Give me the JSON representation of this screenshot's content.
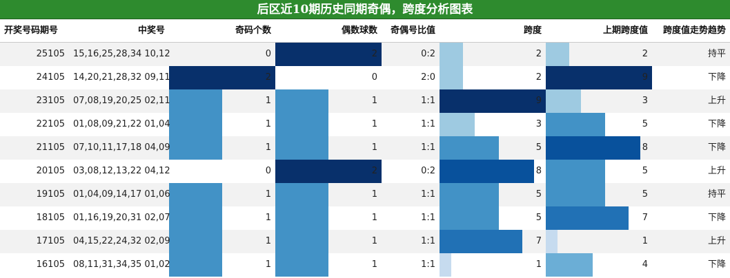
{
  "title": "后区近10期历史同期奇偶，跨度分析图表",
  "headers": {
    "period": "开奖号码期号",
    "numbers": "中奖号",
    "odd_count": "奇码个数",
    "even_count": "偶数球数",
    "ratio": "奇偶号比值",
    "span": "跨度",
    "prev_span": "上期跨度值",
    "trend": "跨度值走势趋势"
  },
  "chart_data": {
    "type": "table",
    "title": "后区近10期历史同期奇偶，跨度分析图表",
    "columns": [
      "开奖号码期号",
      "中奖号",
      "奇码个数",
      "偶数球数",
      "奇偶号比值",
      "跨度",
      "上期跨度值",
      "跨度值走势趋势"
    ],
    "rows": [
      {
        "period": "25105",
        "numbers": "15,16,25,28,34 10,12",
        "odd": 0,
        "even": 2,
        "ratio": "0:2",
        "span": 2,
        "prev_span": 2,
        "trend": "持平"
      },
      {
        "period": "24105",
        "numbers": "14,20,21,28,32 09,11",
        "odd": 2,
        "even": 0,
        "ratio": "2:0",
        "span": 2,
        "prev_span": 9,
        "trend": "下降"
      },
      {
        "period": "23105",
        "numbers": "07,08,19,20,25 02,11",
        "odd": 1,
        "even": 1,
        "ratio": "1:1",
        "span": 9,
        "prev_span": 3,
        "trend": "上升"
      },
      {
        "period": "22105",
        "numbers": "01,08,09,21,22 01,04",
        "odd": 1,
        "even": 1,
        "ratio": "1:1",
        "span": 3,
        "prev_span": 5,
        "trend": "下降"
      },
      {
        "period": "21105",
        "numbers": "07,10,11,17,18 04,09",
        "odd": 1,
        "even": 1,
        "ratio": "1:1",
        "span": 5,
        "prev_span": 8,
        "trend": "下降"
      },
      {
        "period": "20105",
        "numbers": "03,08,12,13,22 04,12",
        "odd": 0,
        "even": 2,
        "ratio": "0:2",
        "span": 8,
        "prev_span": 5,
        "trend": "上升"
      },
      {
        "period": "19105",
        "numbers": "01,04,09,14,17 01,06",
        "odd": 1,
        "even": 1,
        "ratio": "1:1",
        "span": 5,
        "prev_span": 5,
        "trend": "持平"
      },
      {
        "period": "18105",
        "numbers": "01,16,19,20,31 02,07",
        "odd": 1,
        "even": 1,
        "ratio": "1:1",
        "span": 5,
        "prev_span": 7,
        "trend": "下降"
      },
      {
        "period": "17105",
        "numbers": "04,15,22,24,32 02,09",
        "odd": 1,
        "even": 1,
        "ratio": "1:1",
        "span": 7,
        "prev_span": 1,
        "trend": "上升"
      },
      {
        "period": "16105",
        "numbers": "08,11,31,34,35 01,02",
        "odd": 1,
        "even": 1,
        "ratio": "1:1",
        "span": 1,
        "prev_span": 4,
        "trend": "下降"
      }
    ],
    "bar_scales": {
      "odd": [
        0,
        2
      ],
      "even": [
        0,
        2
      ],
      "span": [
        0,
        9
      ],
      "prev_span": [
        0,
        9
      ]
    }
  },
  "colors": {
    "title_bg": "#2e8b2e",
    "bar_scale": [
      "#deebf7",
      "#c6dbef",
      "#9ecae1",
      "#6baed6",
      "#4292c6",
      "#2171b5",
      "#08519c",
      "#08306b"
    ]
  }
}
